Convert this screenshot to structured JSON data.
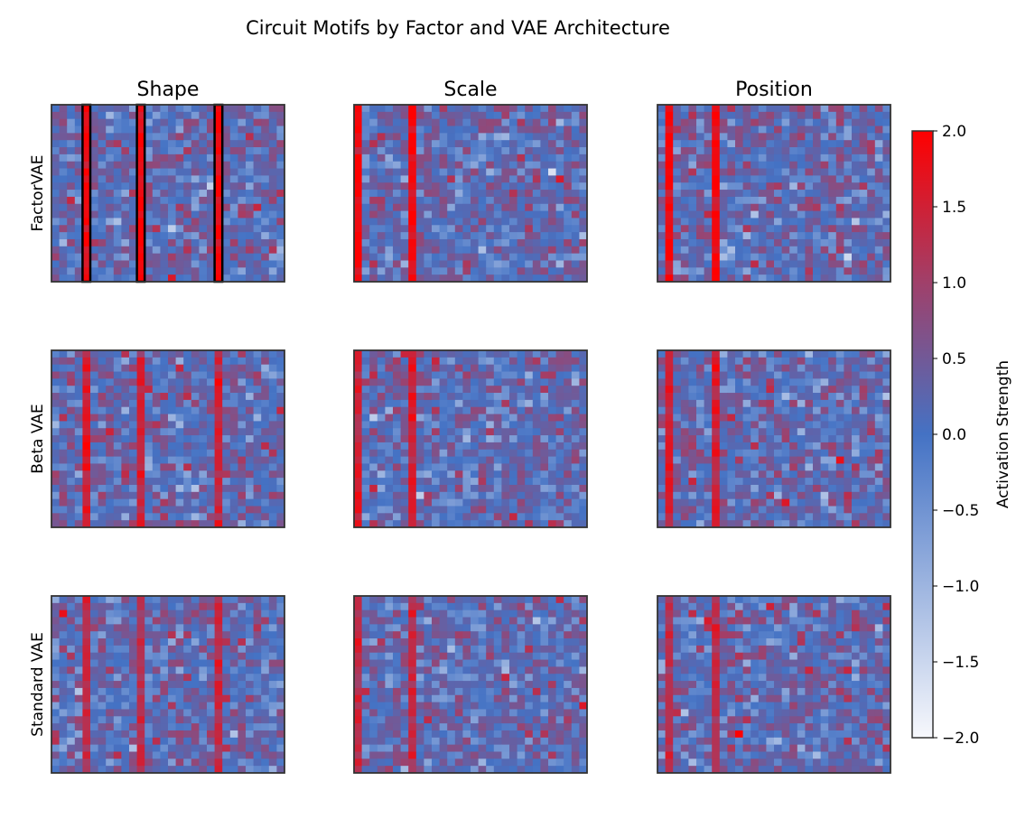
{
  "chart_data": {
    "type": "heatmap",
    "title": "Circuit Motifs by Factor and VAE Architecture",
    "column_titles": [
      "Shape",
      "Scale",
      "Position"
    ],
    "row_labels": [
      "FactorVAE",
      "Beta VAE",
      "Standard VAE"
    ],
    "grid": {
      "rows": 25,
      "cols": 30
    },
    "motif_columns": {
      "Shape": [
        4,
        11,
        21
      ],
      "Scale": [
        0,
        7
      ],
      "Position": [
        1,
        7
      ]
    },
    "highlighted_panel": {
      "row": "FactorVAE",
      "column": "Shape",
      "outlined_columns": [
        4,
        11,
        21
      ]
    },
    "motif_strength": {
      "FactorVAE": 1.9,
      "Beta VAE": 1.5,
      "Standard VAE": 1.3
    },
    "background_mean": 0.15,
    "background_std": 0.45,
    "colorbar": {
      "label": "Activation Strength",
      "range": [
        -2.0,
        2.0
      ],
      "ticks": [
        "2.0",
        "1.5",
        "1.0",
        "0.5",
        "0.0",
        "−0.5",
        "−1.0",
        "−1.5",
        "−2.0"
      ],
      "tick_values": [
        2.0,
        1.5,
        1.0,
        0.5,
        0.0,
        -0.5,
        -1.0,
        -1.5,
        -2.0
      ],
      "colors": {
        "low": "#f7f8fc",
        "mid": "#4472c4",
        "high": "#ff0000"
      }
    }
  }
}
